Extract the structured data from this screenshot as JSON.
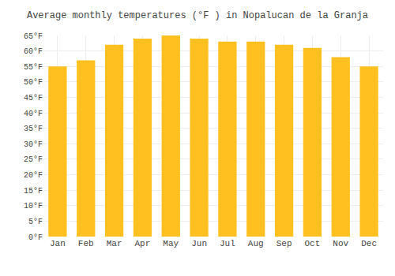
{
  "chart_data": {
    "type": "bar",
    "title": "Average monthly temperatures (°F ) in Nopalucan de la Granja",
    "categories": [
      "Jan",
      "Feb",
      "Mar",
      "Apr",
      "May",
      "Jun",
      "Jul",
      "Aug",
      "Sep",
      "Oct",
      "Nov",
      "Dec"
    ],
    "values": [
      55,
      57,
      62,
      64,
      65,
      64,
      63,
      63,
      62,
      61,
      58,
      55
    ],
    "color": "#FFC020",
    "ylim": [
      0,
      65
    ],
    "yticks": [
      {
        "value": 0,
        "label": "0°F"
      },
      {
        "value": 5,
        "label": "5°F"
      },
      {
        "value": 10,
        "label": "10°F"
      },
      {
        "value": 15,
        "label": "15°F"
      },
      {
        "value": 20,
        "label": "20°F"
      },
      {
        "value": 25,
        "label": "25°F"
      },
      {
        "value": 30,
        "label": "30°F"
      },
      {
        "value": 35,
        "label": "35°F"
      },
      {
        "value": 40,
        "label": "40°F"
      },
      {
        "value": 45,
        "label": "45°F"
      },
      {
        "value": 50,
        "label": "50°F"
      },
      {
        "value": 55,
        "label": "55°F"
      },
      {
        "value": 60,
        "label": "60°F"
      },
      {
        "value": 65,
        "label": "65°F"
      }
    ],
    "grid": true
  }
}
